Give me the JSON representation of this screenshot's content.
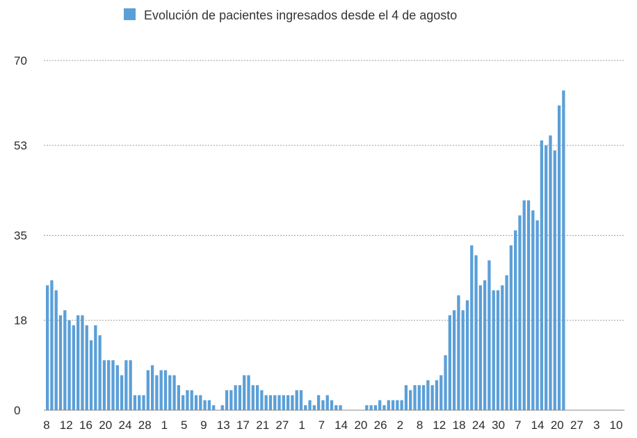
{
  "chart_data": {
    "type": "bar",
    "legend": "Evolución de pacientes ingresados desde el 4 de agosto",
    "legend_position": "top-center",
    "color": "#5b9fd8",
    "ylim": [
      0,
      70
    ],
    "yticks": [
      0,
      18,
      35,
      53,
      70
    ],
    "grid": true,
    "xtick_labels": [
      "8",
      "12",
      "16",
      "20",
      "24",
      "28",
      "1",
      "5",
      "9",
      "13",
      "17",
      "21",
      "27",
      "1",
      "7",
      "14",
      "20",
      "26",
      "2",
      "8",
      "12",
      "18",
      "24",
      "30",
      "7",
      "14",
      "20",
      "27",
      "3",
      "10"
    ],
    "values": [
      25,
      26,
      24,
      19,
      20,
      18,
      17,
      19,
      19,
      17,
      14,
      17,
      15,
      10,
      10,
      10,
      9,
      7,
      10,
      10,
      3,
      3,
      3,
      8,
      9,
      7,
      8,
      8,
      7,
      7,
      5,
      3,
      4,
      4,
      3,
      3,
      2,
      2,
      1,
      0,
      1,
      4,
      4,
      5,
      5,
      7,
      7,
      5,
      5,
      4,
      3,
      3,
      3,
      3,
      3,
      3,
      3,
      4,
      4,
      1,
      2,
      1,
      3,
      2,
      3,
      2,
      1,
      1,
      0,
      0,
      0,
      0,
      0,
      1,
      1,
      1,
      2,
      1,
      2,
      2,
      2,
      2,
      5,
      4,
      5,
      5,
      5,
      6,
      5,
      6,
      7,
      11,
      19,
      20,
      23,
      20,
      22,
      33,
      31,
      25,
      26,
      30,
      24,
      24,
      25,
      27,
      33,
      36,
      39,
      42,
      42,
      40,
      38,
      54,
      53,
      55,
      52,
      61,
      64
    ]
  }
}
